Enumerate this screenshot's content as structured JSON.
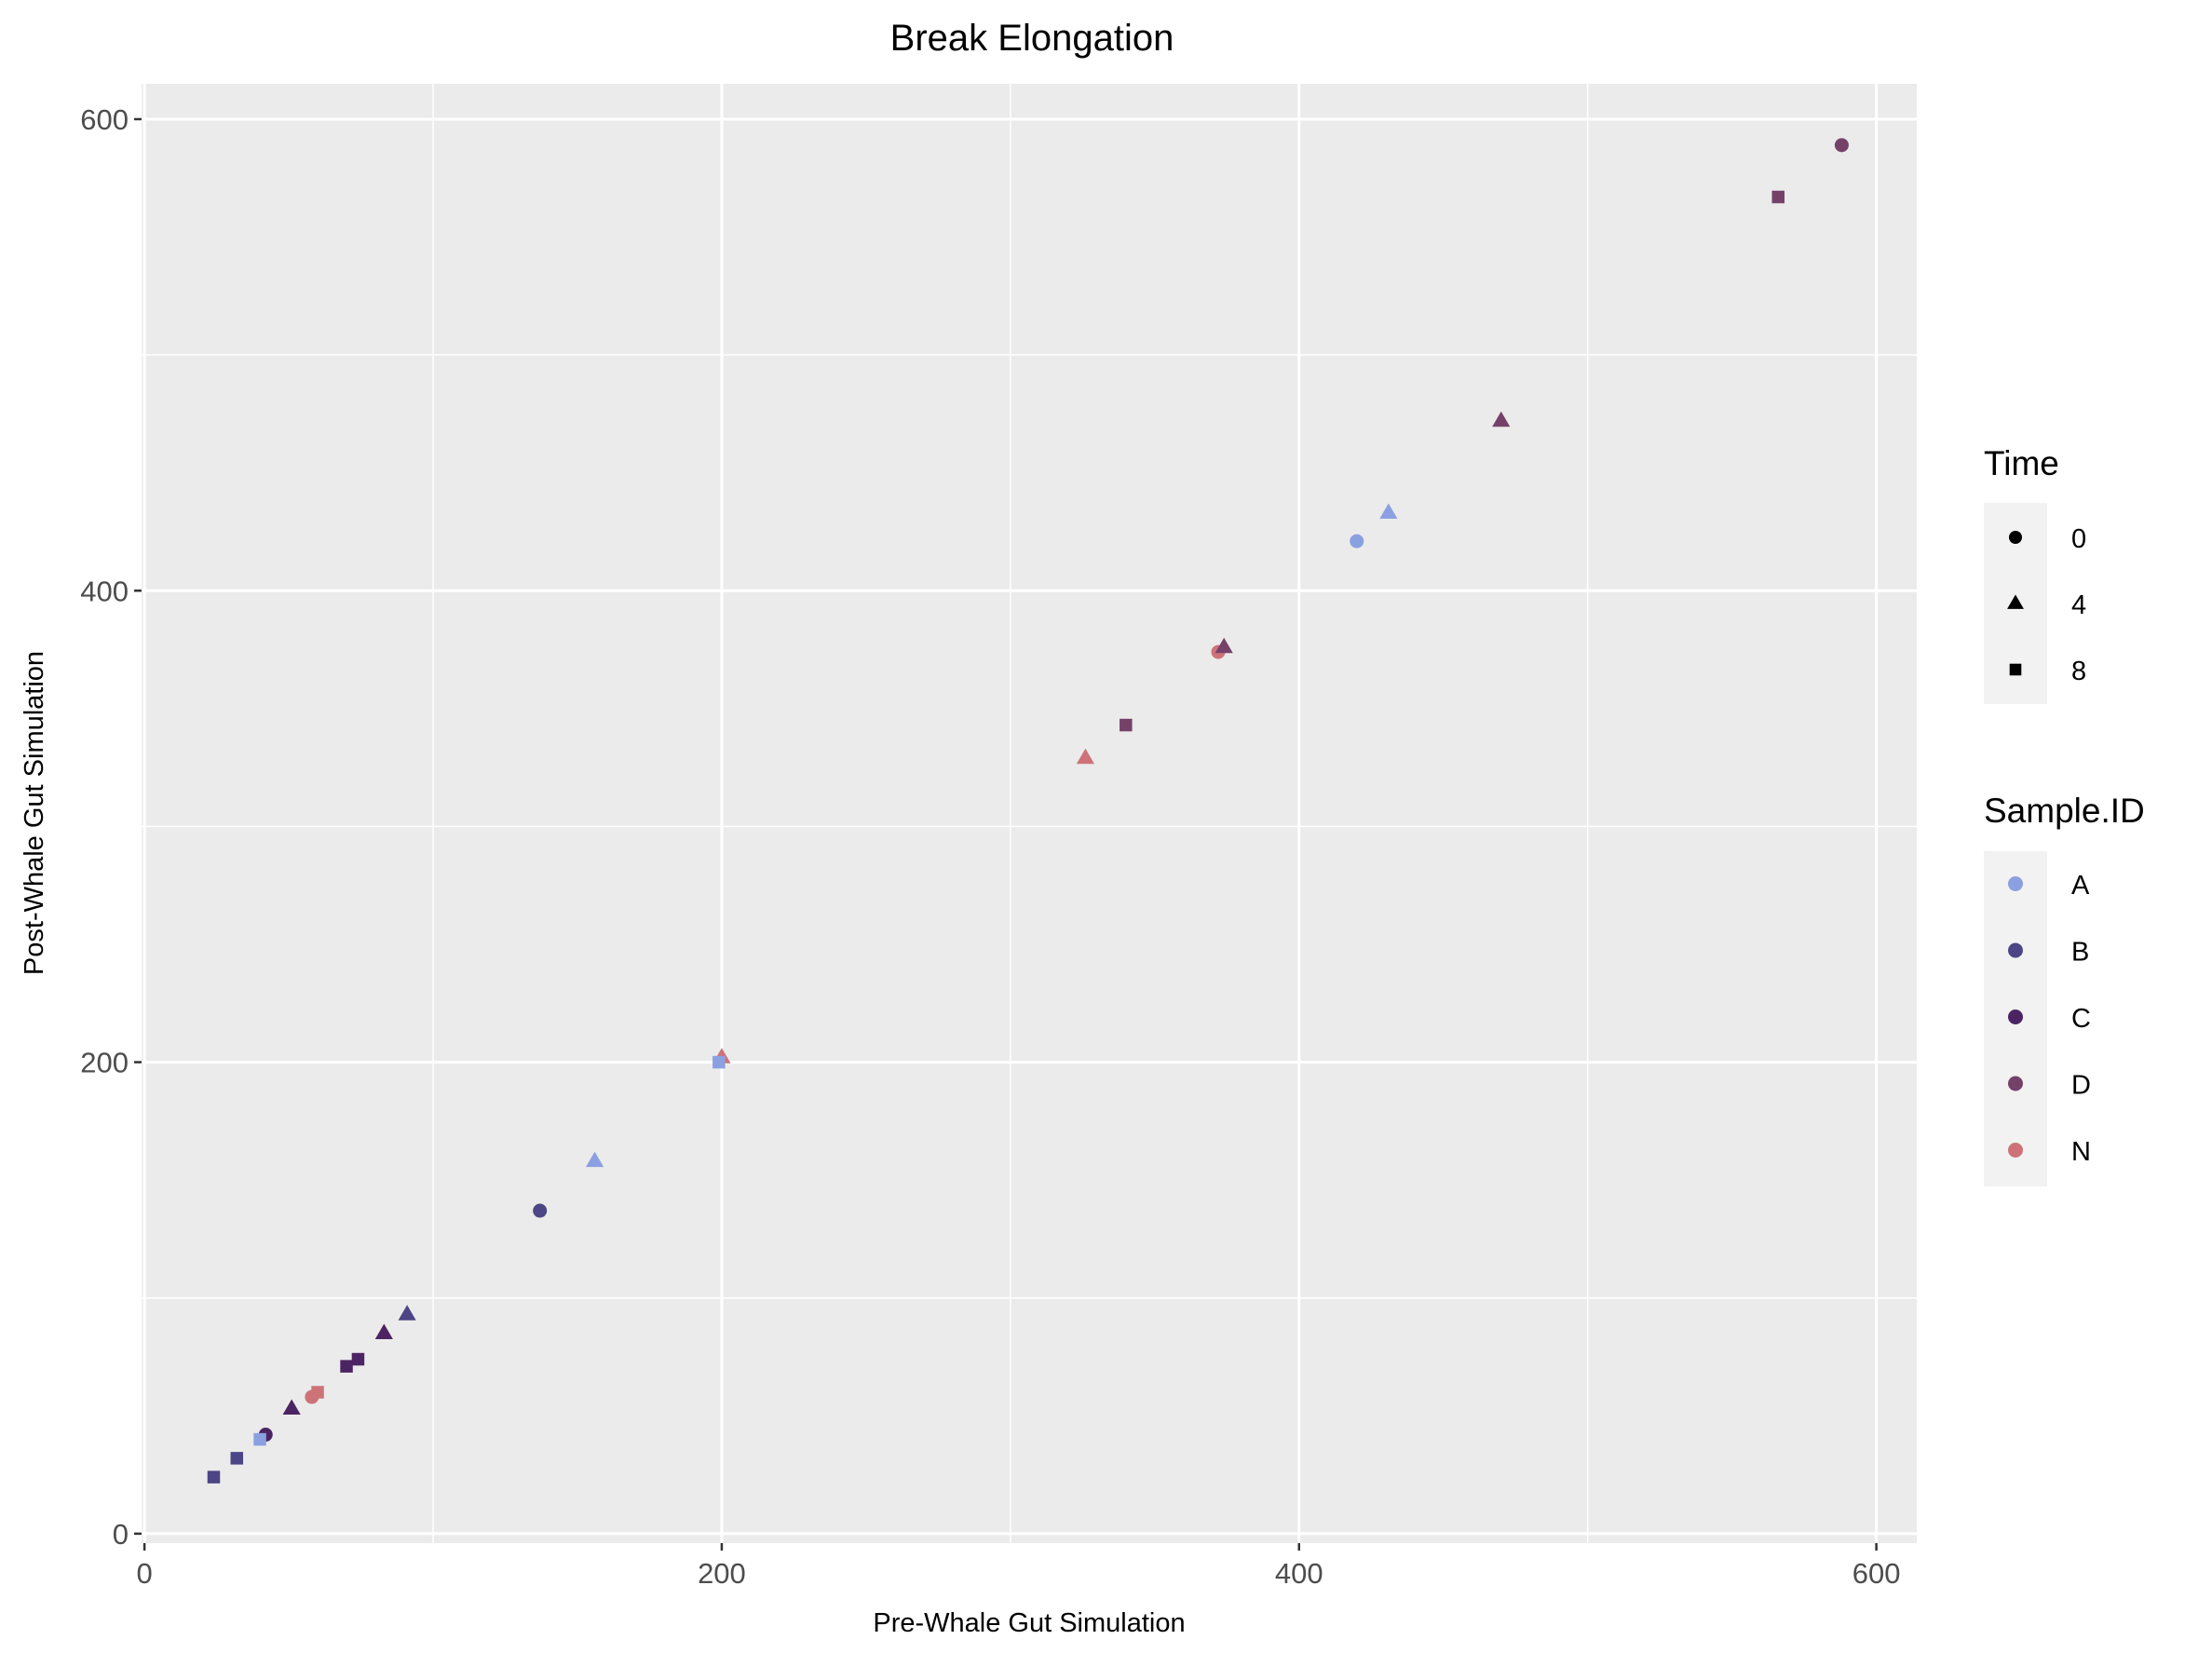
{
  "chart_data": {
    "type": "scatter",
    "title": "Break Elongation",
    "xlabel": "Pre-Whale Gut Simulation",
    "ylabel": "Post-Whale Gut Simulation",
    "xlim": [
      -1,
      614
    ],
    "ylim": [
      -4,
      615
    ],
    "xticks": [
      0,
      200,
      400,
      600
    ],
    "yticks": [
      0,
      200,
      400,
      600
    ],
    "x_minor": [
      100,
      300,
      500
    ],
    "y_minor": [
      100,
      300,
      500
    ],
    "grid": true,
    "legends": {
      "time": {
        "title": "Time",
        "entries": [
          {
            "label": "0",
            "shape": "circle"
          },
          {
            "label": "4",
            "shape": "triangle"
          },
          {
            "label": "8",
            "shape": "square"
          }
        ]
      },
      "sample": {
        "title": "Sample.ID",
        "entries": [
          {
            "label": "A",
            "color": "#8aa0e0"
          },
          {
            "label": "B",
            "color": "#4c4586"
          },
          {
            "label": "C",
            "color": "#4d2463"
          },
          {
            "label": "D",
            "color": "#754169"
          },
          {
            "label": "N",
            "color": "#cd7378"
          }
        ]
      }
    },
    "points": [
      {
        "x": 588,
        "y": 589,
        "time": "0",
        "sample": "D"
      },
      {
        "x": 566,
        "y": 567,
        "time": "8",
        "sample": "D"
      },
      {
        "x": 470,
        "y": 472,
        "time": "4",
        "sample": "D"
      },
      {
        "x": 420,
        "y": 421,
        "time": "0",
        "sample": "A"
      },
      {
        "x": 431,
        "y": 433,
        "time": "4",
        "sample": "A"
      },
      {
        "x": 372,
        "y": 374,
        "time": "0",
        "sample": "N"
      },
      {
        "x": 374,
        "y": 376,
        "time": "4",
        "sample": "D"
      },
      {
        "x": 340,
        "y": 343,
        "time": "8",
        "sample": "D"
      },
      {
        "x": 326,
        "y": 329,
        "time": "4",
        "sample": "N"
      },
      {
        "x": 200,
        "y": 202,
        "time": "4",
        "sample": "N"
      },
      {
        "x": 199,
        "y": 200,
        "time": "8",
        "sample": "A"
      },
      {
        "x": 156,
        "y": 158,
        "time": "4",
        "sample": "A"
      },
      {
        "x": 137,
        "y": 137,
        "time": "0",
        "sample": "B"
      },
      {
        "x": 91,
        "y": 93,
        "time": "4",
        "sample": "B"
      },
      {
        "x": 83,
        "y": 85,
        "time": "4",
        "sample": "C"
      },
      {
        "x": 74,
        "y": 74,
        "time": "8",
        "sample": "C"
      },
      {
        "x": 70,
        "y": 71,
        "time": "8",
        "sample": "C"
      },
      {
        "x": 60,
        "y": 60,
        "time": "8",
        "sample": "N"
      },
      {
        "x": 58,
        "y": 58,
        "time": "0",
        "sample": "N"
      },
      {
        "x": 51,
        "y": 53,
        "time": "4",
        "sample": "C"
      },
      {
        "x": 42,
        "y": 42,
        "time": "0",
        "sample": "C"
      },
      {
        "x": 40,
        "y": 40,
        "time": "8",
        "sample": "A"
      },
      {
        "x": 32,
        "y": 32,
        "time": "8",
        "sample": "B"
      },
      {
        "x": 24,
        "y": 24,
        "time": "8",
        "sample": "B"
      }
    ]
  }
}
